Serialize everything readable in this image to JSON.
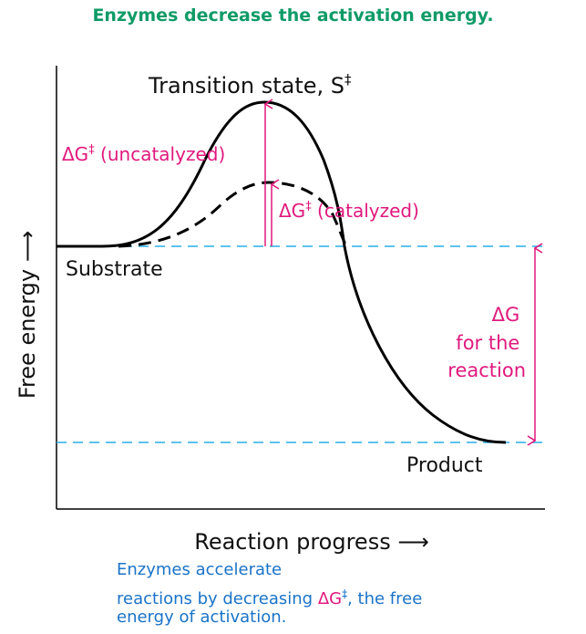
{
  "title": "Enzymes decrease the activation energy.",
  "labels": {
    "transition_state": "Transition state, S",
    "transition_state_sup": "‡",
    "uncatalyzed_prefix": "ΔG",
    "uncatalyzed_sup": "‡",
    "uncatalyzed_suffix": " (uncatalyzed)",
    "catalyzed_prefix": "ΔG",
    "catalyzed_sup": "‡",
    "catalyzed_suffix": " (catalyzed)",
    "substrate": "Substrate",
    "product": "Product",
    "delta_g_line1": "ΔG",
    "delta_g_line2": "for the",
    "delta_g_line3": "reaction",
    "y_axis": "Free energy ⟶",
    "x_axis": "Reaction progress ⟶"
  },
  "caption": {
    "line1": "Enzymes accelerate",
    "line2_a": "reactions by decreasing ",
    "line2_b": "ΔG",
    "line2_sup": "‡",
    "line2_c": ", the free",
    "line3": "energy of activation."
  },
  "colors": {
    "title": "#0f9b66",
    "magenta": "#e0197d",
    "dashed_cyan": "#29aee6",
    "caption": "#1a73c8",
    "curve": "#000000"
  }
}
